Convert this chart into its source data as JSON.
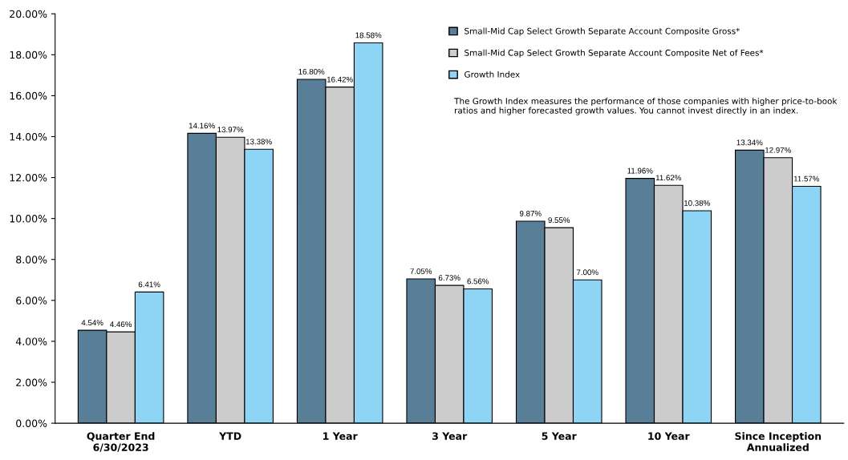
{
  "chart_data": {
    "type": "bar",
    "categories": [
      "Quarter End\n6/30/2023",
      "YTD",
      "1 Year",
      "3 Year",
      "5 Year",
      "10 Year",
      "Since Inception\nAnnualized"
    ],
    "series": [
      {
        "name": "Small-Mid Cap Select Growth Separate Account Composite Gross*",
        "color": "#587e98",
        "values": [
          4.54,
          14.16,
          16.8,
          7.05,
          9.87,
          11.96,
          13.34
        ],
        "value_labels": [
          "4.54%",
          "14.16%",
          "16.80%",
          "7.05%",
          "9.87%",
          "11.96%",
          "13.34%"
        ]
      },
      {
        "name": "Small-Mid Cap Select Growth Separate Account Composite Net of Fees*",
        "color": "#cccccc",
        "values": [
          4.46,
          13.97,
          16.42,
          6.73,
          9.55,
          11.62,
          12.97
        ],
        "value_labels": [
          "4.46%",
          "13.97%",
          "16.42%",
          "6.73%",
          "9.55%",
          "11.62%",
          "12.97%"
        ]
      },
      {
        "name": "Growth Index",
        "color": "#8dd4f5",
        "values": [
          6.41,
          13.38,
          18.58,
          6.56,
          7.0,
          10.38,
          11.57
        ],
        "value_labels": [
          "6.41%",
          "13.38%",
          "18.58%",
          "6.56%",
          "7.00%",
          "10.38%",
          "11.57%"
        ]
      }
    ],
    "ylim": [
      0,
      20
    ],
    "yticks": [
      {
        "value": 0,
        "label": "0.00%"
      },
      {
        "value": 2,
        "label": "2.00%"
      },
      {
        "value": 4,
        "label": "4.00%"
      },
      {
        "value": 6,
        "label": "6.00%"
      },
      {
        "value": 8,
        "label": "8.00%"
      },
      {
        "value": 10,
        "label": "10.00%"
      },
      {
        "value": 12,
        "label": "12.00%"
      },
      {
        "value": 14,
        "label": "14.00%"
      },
      {
        "value": 16,
        "label": "16.00%"
      },
      {
        "value": 18,
        "label": "18.00%"
      },
      {
        "value": 20,
        "label": "20.00%"
      }
    ],
    "annotations": [
      "The Growth Index measures the performance of those companies with higher price-to-book ratios and higher forecasted growth values. You cannot invest directly in an index."
    ],
    "legend": "top right",
    "grid": false
  }
}
